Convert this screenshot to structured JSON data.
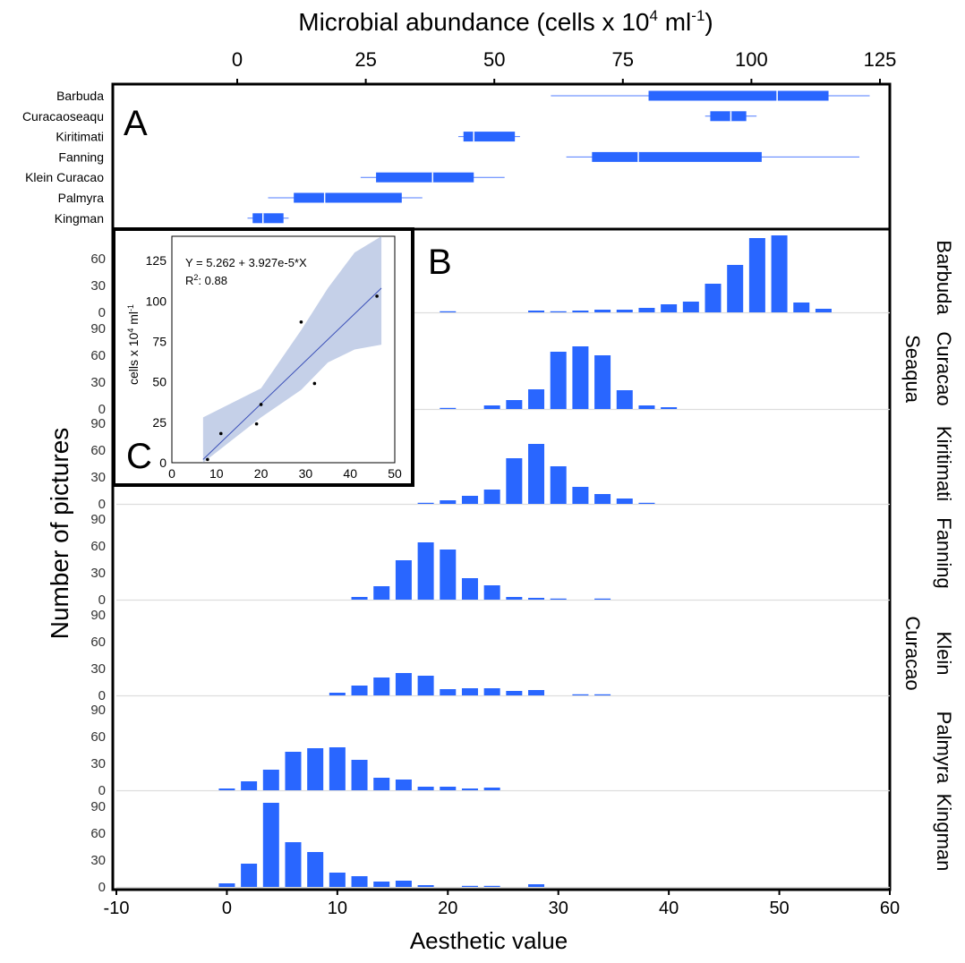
{
  "colors": {
    "bar": "#2966FF",
    "whisker": "#4F7BFF",
    "ci_band": "#C5D0E8",
    "fit_line": "#3A4FB8",
    "axis": "#000000",
    "baseline": "#DDDDDD"
  },
  "top_axis": {
    "label": "Microbial abundance (cells x 10",
    "label_sup": "4",
    "label_mid": " ml",
    "label_sup2": "-1",
    "label_end": ")",
    "ticks": [
      0,
      25,
      50,
      75,
      100,
      125
    ]
  },
  "bottom_axis": {
    "label": "Aesthetic value",
    "ticks": [
      -10,
      0,
      10,
      20,
      30,
      40,
      50,
      60
    ]
  },
  "y_axis_label": "Number of pictures",
  "panel_letters": {
    "a": "A",
    "b": "B",
    "c": "C"
  },
  "chart_data": [
    {
      "panel": "A",
      "type": "box",
      "xlabel": "Microbial abundance (cells x 10^4 ml^-1)",
      "xlim": [
        -20,
        128
      ],
      "categories": [
        "Barbuda",
        "Curacaoseaqu",
        "Kiritimati",
        "Fanning",
        "Klein Curacao",
        "Palmyra",
        "Kingman"
      ],
      "boxes": [
        {
          "name": "Barbuda",
          "min": 61,
          "q1": 80,
          "median": 105,
          "q3": 115,
          "max": 123
        },
        {
          "name": "Curacaoseaqu",
          "min": 91,
          "q1": 92,
          "median": 96,
          "q3": 99,
          "max": 101
        },
        {
          "name": "Kiritimati",
          "min": 43,
          "q1": 44,
          "median": 46,
          "q3": 54,
          "max": 55
        },
        {
          "name": "Fanning",
          "min": 64,
          "q1": 69,
          "median": 78,
          "q3": 102,
          "max": 121
        },
        {
          "name": "Klein Curacao",
          "min": 24,
          "q1": 27,
          "median": 38,
          "q3": 46,
          "max": 52
        },
        {
          "name": "Palmyra",
          "min": 6,
          "q1": 11,
          "median": 17,
          "q3": 32,
          "max": 36
        },
        {
          "name": "Kingman",
          "min": 2,
          "q1": 3,
          "median": 5,
          "q3": 9,
          "max": 10
        }
      ]
    },
    {
      "panel": "B",
      "type": "bar",
      "xlabel": "Aesthetic value",
      "ylabel": "Number of pictures",
      "xlim": [
        -10,
        60
      ],
      "ylim": [
        0,
        90
      ],
      "yticks": [
        0,
        30,
        60,
        90
      ],
      "x": [
        0,
        2,
        4,
        6,
        8,
        10,
        12,
        14,
        16,
        18,
        20,
        22,
        24,
        26,
        28,
        30,
        32,
        34,
        36,
        38,
        40,
        42,
        44,
        46,
        48,
        50,
        52,
        54
      ],
      "series": [
        {
          "name": "Barbuda",
          "values": [
            0,
            0,
            0,
            0,
            0,
            0,
            0,
            0,
            0,
            0,
            1,
            0,
            0,
            0,
            2,
            1,
            2,
            3,
            3,
            5,
            9,
            12,
            32,
            53,
            83,
            86,
            11,
            4
          ]
        },
        {
          "name": "Curacao Seaqua",
          "values": [
            0,
            0,
            0,
            0,
            0,
            0,
            0,
            0,
            0,
            0,
            1,
            0,
            4,
            10,
            22,
            64,
            70,
            60,
            21,
            4,
            2,
            0,
            0,
            0,
            0,
            0,
            0,
            0
          ]
        },
        {
          "name": "Kiritimati",
          "values": [
            0,
            0,
            0,
            0,
            0,
            0,
            0,
            0,
            0,
            1,
            4,
            9,
            16,
            51,
            67,
            42,
            19,
            11,
            6,
            1,
            0,
            0,
            0,
            0,
            0,
            0,
            0,
            0
          ]
        },
        {
          "name": "Fanning",
          "values": [
            0,
            0,
            0,
            0,
            0,
            0,
            3,
            15,
            44,
            64,
            56,
            24,
            16,
            3,
            2,
            1,
            0,
            1,
            0,
            0,
            0,
            0,
            0,
            0,
            0,
            0,
            0,
            0
          ]
        },
        {
          "name": "Klein Curacao",
          "values": [
            0,
            0,
            0,
            0,
            0,
            3,
            11,
            20,
            25,
            22,
            7,
            8,
            8,
            5,
            6,
            0,
            1,
            1,
            0,
            0,
            0,
            0,
            0,
            0,
            0,
            0,
            0,
            0
          ]
        },
        {
          "name": "Palmyra",
          "values": [
            2,
            10,
            23,
            43,
            47,
            48,
            34,
            14,
            12,
            4,
            4,
            2,
            3,
            0,
            0,
            0,
            0,
            0,
            0,
            0,
            0,
            0,
            0,
            0,
            0,
            0,
            0,
            0
          ]
        },
        {
          "name": "Kingman",
          "values": [
            4,
            26,
            94,
            50,
            39,
            16,
            12,
            6,
            7,
            2,
            0,
            1,
            1,
            0,
            3,
            0,
            0,
            0,
            0,
            0,
            0,
            0,
            0,
            0,
            0,
            0,
            0,
            0
          ]
        }
      ],
      "row_labels": [
        [
          "Barbuda"
        ],
        [
          "Curacao",
          "Seaqua"
        ],
        [
          "Kiritimati"
        ],
        [
          "Fanning"
        ],
        [
          "Klein",
          "Curacao"
        ],
        [
          "Palmyra"
        ],
        [
          "Kingman"
        ]
      ]
    },
    {
      "panel": "C",
      "type": "scatter",
      "ylabel": "cells x 10^4 ml^-1",
      "xlim": [
        0,
        50
      ],
      "ylim": [
        0,
        140
      ],
      "xticks": [
        0,
        10,
        20,
        30,
        40,
        50
      ],
      "yticks": [
        0,
        25,
        50,
        75,
        100,
        125
      ],
      "points": [
        {
          "x": 8,
          "y": 2
        },
        {
          "x": 11,
          "y": 18
        },
        {
          "x": 19,
          "y": 24
        },
        {
          "x": 20,
          "y": 36
        },
        {
          "x": 29,
          "y": 87
        },
        {
          "x": 32,
          "y": 49
        },
        {
          "x": 46,
          "y": 103
        }
      ],
      "fit": {
        "x": [
          7,
          47
        ],
        "y": [
          2,
          108
        ]
      },
      "ci_upper": [
        [
          7,
          28
        ],
        [
          20,
          46
        ],
        [
          29,
          82
        ],
        [
          35,
          108
        ],
        [
          41,
          130
        ],
        [
          47,
          140
        ]
      ],
      "ci_lower": [
        [
          7,
          0
        ],
        [
          20,
          28
        ],
        [
          29,
          45
        ],
        [
          35,
          62
        ],
        [
          41,
          70
        ],
        [
          47,
          73
        ]
      ],
      "equation": "Y = 5.262 + 3.927e-5*X",
      "r2_label": "R",
      "r2_sup": "2",
      "r2_value": ": 0.88",
      "ylabel_parts": {
        "main": "cells x 10",
        "sup": "4",
        "mid": " ml",
        "sup2": "-1"
      }
    }
  ]
}
